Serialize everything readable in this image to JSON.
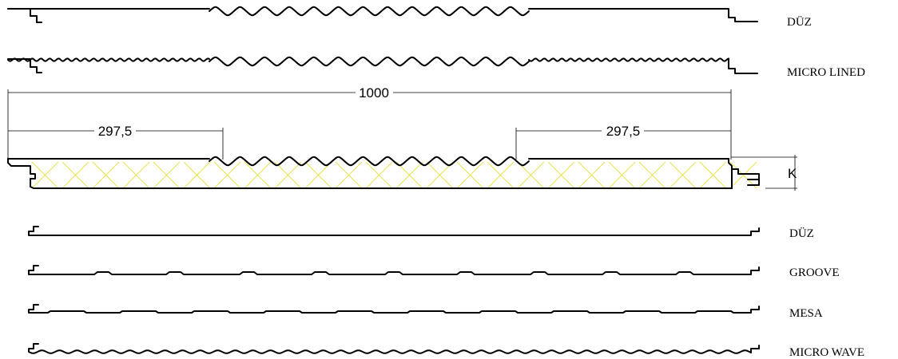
{
  "top_profiles": [
    {
      "label": "DÜZ"
    },
    {
      "label": "MICRO LINED"
    }
  ],
  "dimensions": {
    "total": "1000",
    "left_flat": "297,5",
    "right_flat": "297,5",
    "thickness": "K"
  },
  "bottom_profiles": [
    {
      "label": "DÜZ"
    },
    {
      "label": "GROOVE"
    },
    {
      "label": "MESA"
    },
    {
      "label": "MICRO WAVE"
    }
  ],
  "colors": {
    "line": "#000000",
    "insulation_hatch": "#e8e24a"
  }
}
